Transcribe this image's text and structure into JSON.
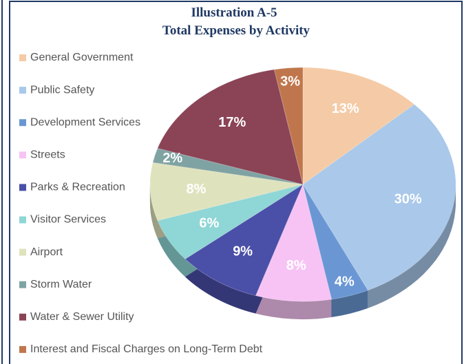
{
  "chart_data": {
    "type": "pie",
    "title": "Illustration A-5",
    "subtitle": "Total Expenses by Activity",
    "categories": [
      "General Government",
      "Public Safety",
      "Development Services",
      "Streets",
      "Parks & Recreation",
      "Visitor Services",
      "Airport",
      "Storm Water",
      "Water & Sewer Utility",
      "Interest and Fiscal Charges on Long-Term Debt"
    ],
    "values": [
      13,
      30,
      4,
      8,
      9,
      6,
      8,
      2,
      17,
      3
    ],
    "value_labels": [
      "13%",
      "30%",
      "4%",
      "8%",
      "9%",
      "6%",
      "8%",
      "2%",
      "17%",
      "3%"
    ],
    "colors": [
      "#f4cba6",
      "#a9c8ea",
      "#6a97d4",
      "#f7c3f4",
      "#4a4fa8",
      "#8fd6d6",
      "#dfe3bd",
      "#7fa3a3",
      "#8b4356",
      "#c0764c"
    ],
    "legend": "left"
  }
}
